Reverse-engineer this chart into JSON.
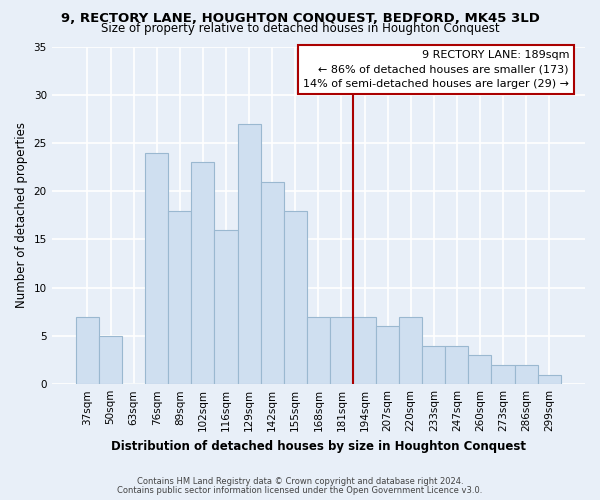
{
  "title": "9, RECTORY LANE, HOUGHTON CONQUEST, BEDFORD, MK45 3LD",
  "subtitle": "Size of property relative to detached houses in Houghton Conquest",
  "xlabel": "Distribution of detached houses by size in Houghton Conquest",
  "ylabel": "Number of detached properties",
  "categories": [
    "37sqm",
    "50sqm",
    "63sqm",
    "76sqm",
    "89sqm",
    "102sqm",
    "116sqm",
    "129sqm",
    "142sqm",
    "155sqm",
    "168sqm",
    "181sqm",
    "194sqm",
    "207sqm",
    "220sqm",
    "233sqm",
    "247sqm",
    "260sqm",
    "273sqm",
    "286sqm",
    "299sqm"
  ],
  "values": [
    7,
    5,
    0,
    24,
    18,
    23,
    16,
    27,
    21,
    18,
    7,
    7,
    7,
    6,
    7,
    4,
    4,
    3,
    2,
    2,
    1
  ],
  "bar_color": "#cfdff0",
  "bar_edge_color": "#9ab8d0",
  "vline_color": "#aa0000",
  "annotation_title": "9 RECTORY LANE: 189sqm",
  "annotation_line1": "← 86% of detached houses are smaller (173)",
  "annotation_line2": "14% of semi-detached houses are larger (29) →",
  "annotation_box_color": "#ffffff",
  "annotation_box_edge": "#aa0000",
  "ylim": [
    0,
    35
  ],
  "yticks": [
    0,
    5,
    10,
    15,
    20,
    25,
    30,
    35
  ],
  "footer1": "Contains HM Land Registry data © Crown copyright and database right 2024.",
  "footer2": "Contains public sector information licensed under the Open Government Licence v3.0.",
  "bg_color": "#e8eff8",
  "grid_color": "#ffffff"
}
